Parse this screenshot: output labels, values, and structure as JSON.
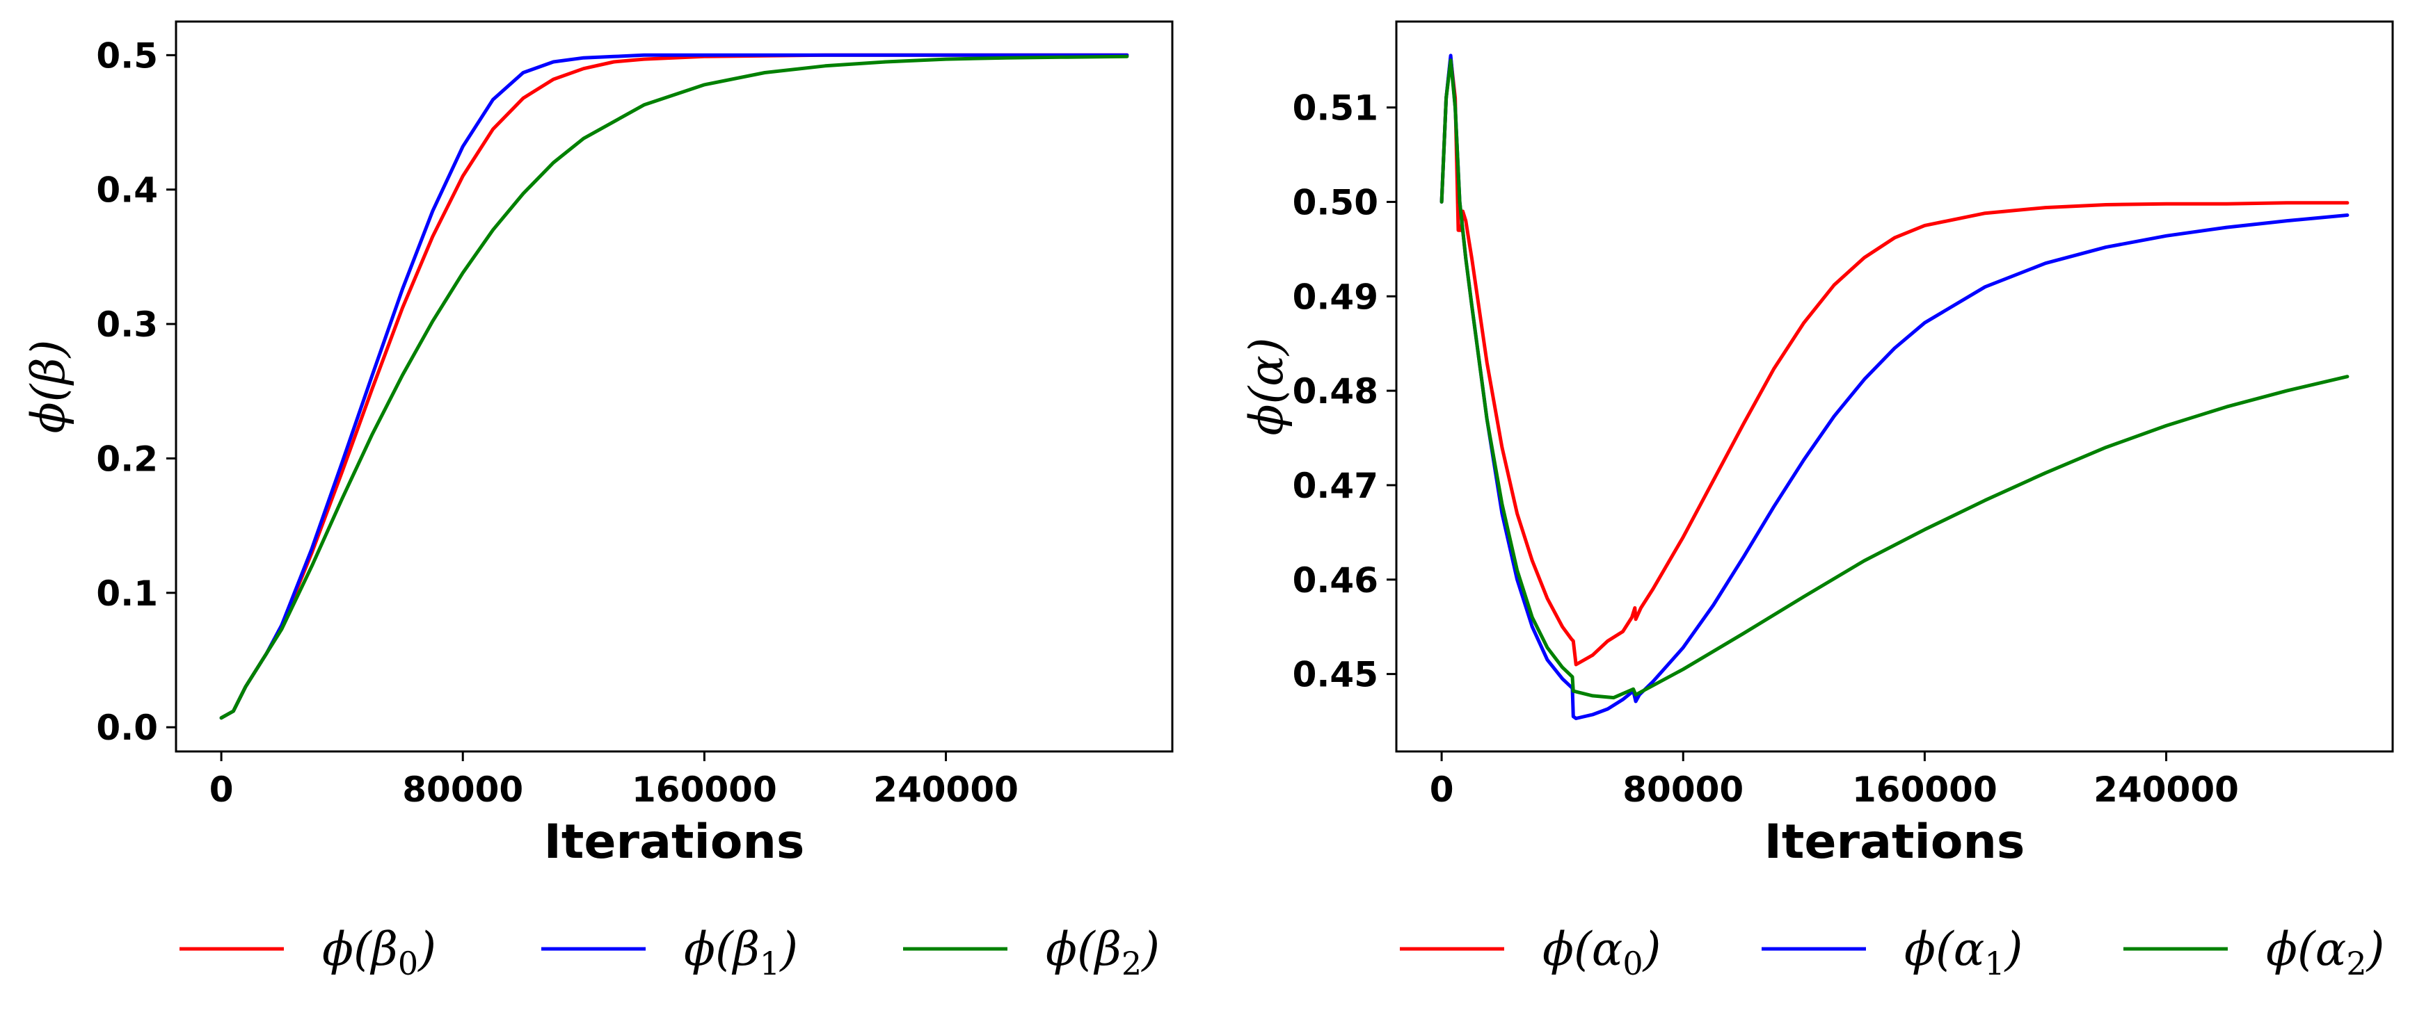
{
  "chart_data": [
    {
      "type": "line",
      "xlabel": "Iterations",
      "ylabel": "ϕ(β)",
      "xlim": [
        -15000,
        315000
      ],
      "ylim": [
        -0.018,
        0.525
      ],
      "xticks": [
        0,
        80000,
        160000,
        240000
      ],
      "yticks": [
        0.0,
        0.1,
        0.2,
        0.3,
        0.4,
        0.5
      ],
      "ytick_labels": [
        "0.0",
        "0.1",
        "0.2",
        "0.3",
        "0.4",
        "0.5"
      ],
      "legend": "below",
      "series": [
        {
          "name": "ϕ(β₀)",
          "base": "ϕ(β",
          "sub": "0",
          "color": "#ff0000",
          "x": [
            0,
            4000,
            8000,
            15000,
            20000,
            30000,
            40000,
            50000,
            60000,
            70000,
            80000,
            90000,
            100000,
            110000,
            120000,
            130000,
            140000,
            160000,
            200000,
            250000,
            300000
          ],
          "y": [
            0.007,
            0.012,
            0.03,
            0.055,
            0.075,
            0.13,
            0.19,
            0.252,
            0.312,
            0.365,
            0.41,
            0.445,
            0.468,
            0.482,
            0.49,
            0.495,
            0.497,
            0.499,
            0.5,
            0.5,
            0.5
          ]
        },
        {
          "name": "ϕ(β₁)",
          "base": "ϕ(β",
          "sub": "1",
          "color": "#0000ff",
          "x": [
            0,
            4000,
            8000,
            15000,
            20000,
            30000,
            40000,
            50000,
            60000,
            70000,
            80000,
            90000,
            100000,
            110000,
            120000,
            130000,
            140000,
            160000,
            200000,
            250000,
            300000
          ],
          "y": [
            0.007,
            0.012,
            0.03,
            0.055,
            0.076,
            0.133,
            0.197,
            0.262,
            0.326,
            0.384,
            0.432,
            0.467,
            0.487,
            0.495,
            0.498,
            0.499,
            0.5,
            0.5,
            0.5,
            0.5,
            0.5
          ]
        },
        {
          "name": "ϕ(β₂)",
          "base": "ϕ(β",
          "sub": "2",
          "color": "#008000",
          "x": [
            0,
            4000,
            8000,
            15000,
            20000,
            30000,
            40000,
            50000,
            60000,
            70000,
            80000,
            90000,
            100000,
            110000,
            120000,
            140000,
            160000,
            180000,
            200000,
            220000,
            240000,
            260000,
            280000,
            300000
          ],
          "y": [
            0.007,
            0.012,
            0.03,
            0.055,
            0.073,
            0.12,
            0.17,
            0.218,
            0.262,
            0.302,
            0.338,
            0.37,
            0.397,
            0.42,
            0.438,
            0.463,
            0.478,
            0.487,
            0.492,
            0.495,
            0.497,
            0.498,
            0.4985,
            0.499
          ]
        }
      ]
    },
    {
      "type": "line",
      "xlabel": "Iterations",
      "ylabel": "ϕ(α)",
      "xlim": [
        -15000,
        315000
      ],
      "ylim": [
        0.4418,
        0.5191
      ],
      "xticks": [
        0,
        80000,
        160000,
        240000
      ],
      "yticks": [
        0.45,
        0.46,
        0.47,
        0.48,
        0.49,
        0.5,
        0.51
      ],
      "ytick_labels": [
        "0.45",
        "0.46",
        "0.47",
        "0.48",
        "0.49",
        "0.50",
        "0.51"
      ],
      "legend": "below",
      "series": [
        {
          "name": "ϕ(α₀)",
          "base": "ϕ(α",
          "sub": "0",
          "color": "#ff0000",
          "x": [
            0,
            1500,
            3000,
            4500,
            5500,
            6500,
            7000,
            8000,
            9000,
            10000,
            15000,
            20000,
            25000,
            30000,
            35000,
            40000,
            43000,
            43600,
            44500,
            50000,
            55000,
            60000,
            63000,
            64000,
            64300,
            66000,
            70000,
            80000,
            90000,
            100000,
            110000,
            120000,
            130000,
            140000,
            150000,
            160000,
            180000,
            200000,
            220000,
            240000,
            260000,
            280000,
            300000
          ],
          "y": [
            0.5,
            0.511,
            0.5153,
            0.511,
            0.497,
            0.497,
            0.499,
            0.498,
            0.496,
            0.494,
            0.483,
            0.474,
            0.467,
            0.462,
            0.458,
            0.455,
            0.4537,
            0.4535,
            0.451,
            0.452,
            0.4535,
            0.4545,
            0.456,
            0.457,
            0.4558,
            0.457,
            0.459,
            0.4645,
            0.4705,
            0.4765,
            0.4823,
            0.4872,
            0.4912,
            0.4941,
            0.4962,
            0.4975,
            0.4988,
            0.4994,
            0.4997,
            0.4998,
            0.4998,
            0.4999,
            0.4999
          ]
        },
        {
          "name": "ϕ(α₁)",
          "base": "ϕ(α",
          "sub": "1",
          "color": "#0000ff",
          "x": [
            0,
            1500,
            3000,
            4500,
            6000,
            8000,
            10000,
            15000,
            20000,
            25000,
            30000,
            35000,
            40000,
            43300,
            43600,
            44500,
            50000,
            55000,
            60000,
            63500,
            64300,
            65500,
            70000,
            80000,
            90000,
            100000,
            110000,
            120000,
            130000,
            140000,
            150000,
            160000,
            180000,
            200000,
            220000,
            240000,
            260000,
            280000,
            300000
          ],
          "y": [
            0.5,
            0.511,
            0.5155,
            0.51,
            0.5,
            0.494,
            0.489,
            0.477,
            0.467,
            0.46,
            0.455,
            0.4515,
            0.4495,
            0.4485,
            0.4455,
            0.4453,
            0.4457,
            0.4463,
            0.4473,
            0.4482,
            0.4471,
            0.4478,
            0.4492,
            0.4528,
            0.4573,
            0.4624,
            0.4677,
            0.4727,
            0.4773,
            0.4812,
            0.4845,
            0.4872,
            0.491,
            0.4935,
            0.4952,
            0.4964,
            0.4973,
            0.498,
            0.4986
          ]
        },
        {
          "name": "ϕ(α₂)",
          "base": "ϕ(α",
          "sub": "2",
          "color": "#008000",
          "x": [
            0,
            1500,
            3000,
            4500,
            6000,
            8000,
            10000,
            15000,
            20000,
            25000,
            30000,
            35000,
            40000,
            43300,
            43600,
            50000,
            57000,
            63500,
            64300,
            66000,
            80000,
            100000,
            120000,
            140000,
            160000,
            180000,
            200000,
            220000,
            240000,
            260000,
            280000,
            300000
          ],
          "y": [
            0.5,
            0.511,
            0.515,
            0.51,
            0.5,
            0.494,
            0.489,
            0.477,
            0.468,
            0.461,
            0.456,
            0.4528,
            0.4507,
            0.4497,
            0.4482,
            0.4477,
            0.4475,
            0.4484,
            0.4478,
            0.4481,
            0.4505,
            0.4543,
            0.4582,
            0.462,
            0.4653,
            0.4684,
            0.4713,
            0.474,
            0.4763,
            0.4783,
            0.48,
            0.4815
          ]
        }
      ]
    }
  ]
}
